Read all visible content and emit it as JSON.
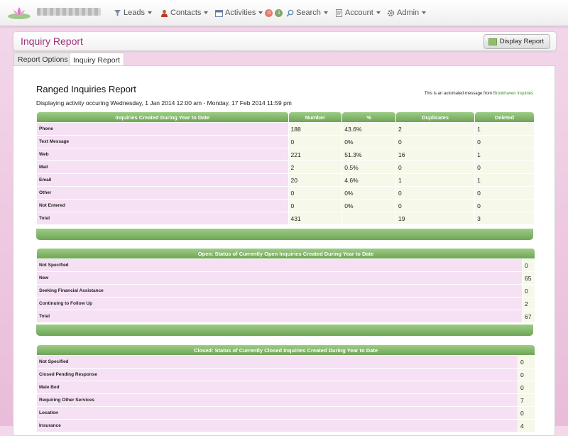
{
  "nav": {
    "leads": "Leads",
    "contacts": "Contacts",
    "activities": "Activities",
    "activities_badge_red": "0",
    "activities_badge_green": "1",
    "search": "Search",
    "account": "Account",
    "admin": "Admin"
  },
  "header": {
    "title": "Inquiry Report",
    "display_button": "Display Report"
  },
  "tabs": [
    "Report Options",
    "Inquiry Report"
  ],
  "report": {
    "title": "Ranged Inquiries Report",
    "subtitle": "Displaying activity occuring Wednesday, 1 Jan 2014 12:00 am - Monday, 17 Feb 2014 11:59 pm",
    "auto_message_prefix": "This is an automated message from",
    "auto_message_link": "Brookhaven Inquiries"
  },
  "created_table": {
    "headers": [
      "Inquiries Created During Year to Date",
      "Number",
      "%",
      "Duplicates",
      "Deleted"
    ],
    "rows": [
      [
        "Phone",
        "188",
        "43.6%",
        "2",
        "1"
      ],
      [
        "Text Message",
        "0",
        "0%",
        "0",
        "0"
      ],
      [
        "Web",
        "221",
        "51.3%",
        "16",
        "1"
      ],
      [
        "Mail",
        "2",
        "0.5%",
        "0",
        "0"
      ],
      [
        "Email",
        "20",
        "4.6%",
        "1",
        "1"
      ],
      [
        "Other",
        "0",
        "0%",
        "0",
        "0"
      ],
      [
        "Not Entered",
        "0",
        "0%",
        "0",
        "0"
      ],
      [
        "Total",
        "431",
        "",
        "19",
        "3"
      ]
    ]
  },
  "open_table": {
    "header": "Open: Status of Currently Open Inquiries Created During Year to Date",
    "rows": [
      [
        "Not Specified",
        "0"
      ],
      [
        "New",
        "65"
      ],
      [
        "Seeking Financial Assistance",
        "0"
      ],
      [
        "Continuing to Follow Up",
        "2"
      ],
      [
        "Total",
        "67"
      ]
    ]
  },
  "closed_table": {
    "header": "Closed: Status of Currently Closed Inquiries Created During Year to Date",
    "rows": [
      [
        "Not Specified",
        "0"
      ],
      [
        "Closed Pending Response",
        "0"
      ],
      [
        "Male Bed",
        "0"
      ],
      [
        "Requiring Other Services",
        "7"
      ],
      [
        "Location",
        "0"
      ],
      [
        "Insurance",
        "4"
      ]
    ]
  },
  "colors": {
    "accent": "#a0307a",
    "header_green": "#7db264",
    "label_pink": "#f5e1f3",
    "value_cream": "#f6f8ea"
  }
}
